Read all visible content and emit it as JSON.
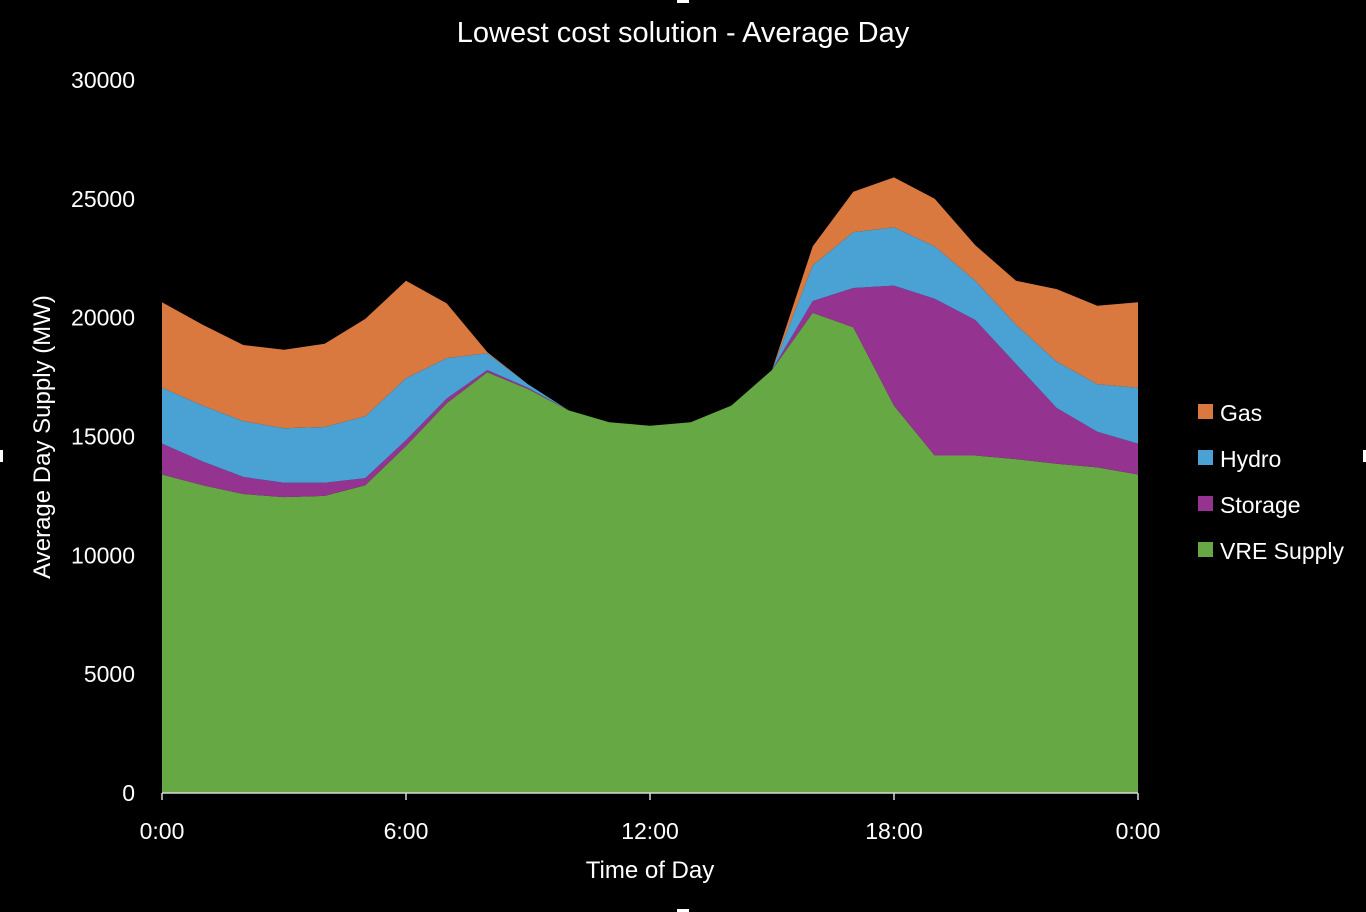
{
  "chart_data": {
    "type": "area",
    "stacked": true,
    "title": "Lowest cost solution - Average Day",
    "xlabel": "Time of Day",
    "ylabel": "Average Day Supply (MW)",
    "x_tick_labels": [
      "0:00",
      "6:00",
      "12:00",
      "18:00",
      "0:00"
    ],
    "y_ticks": [
      0,
      5000,
      10000,
      15000,
      20000,
      25000,
      30000
    ],
    "ylim": [
      0,
      30000
    ],
    "xlim": [
      0,
      24
    ],
    "x": [
      0,
      1,
      2,
      3,
      4,
      5,
      6,
      7,
      8,
      9,
      10,
      11,
      12,
      13,
      14,
      15,
      16,
      17,
      18,
      19,
      20,
      21,
      22,
      23,
      24
    ],
    "grid": false,
    "legend_position": "right",
    "series": [
      {
        "name": "VRE Supply",
        "color": "#65A844",
        "values": [
          13400,
          12950,
          12580,
          12450,
          12500,
          12950,
          14600,
          16400,
          17700,
          17000,
          16100,
          15600,
          15450,
          15600,
          16300,
          17800,
          20200,
          19600,
          16300,
          14200,
          14200,
          14050,
          13850,
          13700,
          13400
        ]
      },
      {
        "name": "Storage",
        "color": "#953391",
        "values": [
          1300,
          1000,
          720,
          600,
          550,
          300,
          250,
          200,
          100,
          50,
          0,
          0,
          0,
          0,
          0,
          0,
          500,
          1650,
          5050,
          6600,
          5700,
          4000,
          2350,
          1500,
          1300
        ]
      },
      {
        "name": "Hydro",
        "color": "#4AA1D3",
        "values": [
          2350,
          2350,
          2350,
          2300,
          2350,
          2600,
          2600,
          1700,
          700,
          150,
          0,
          0,
          0,
          0,
          0,
          0,
          1500,
          2350,
          2450,
          2200,
          1650,
          1650,
          1950,
          2000,
          2350
        ]
      },
      {
        "name": "Gas",
        "color": "#D9793F",
        "values": [
          3600,
          3400,
          3200,
          3300,
          3500,
          4100,
          4100,
          2300,
          50,
          0,
          0,
          0,
          0,
          0,
          0,
          0,
          800,
          1700,
          2100,
          2000,
          1500,
          1850,
          3050,
          3300,
          3600
        ]
      }
    ],
    "legend": [
      "Gas",
      "Hydro",
      "Storage",
      "VRE Supply"
    ]
  }
}
